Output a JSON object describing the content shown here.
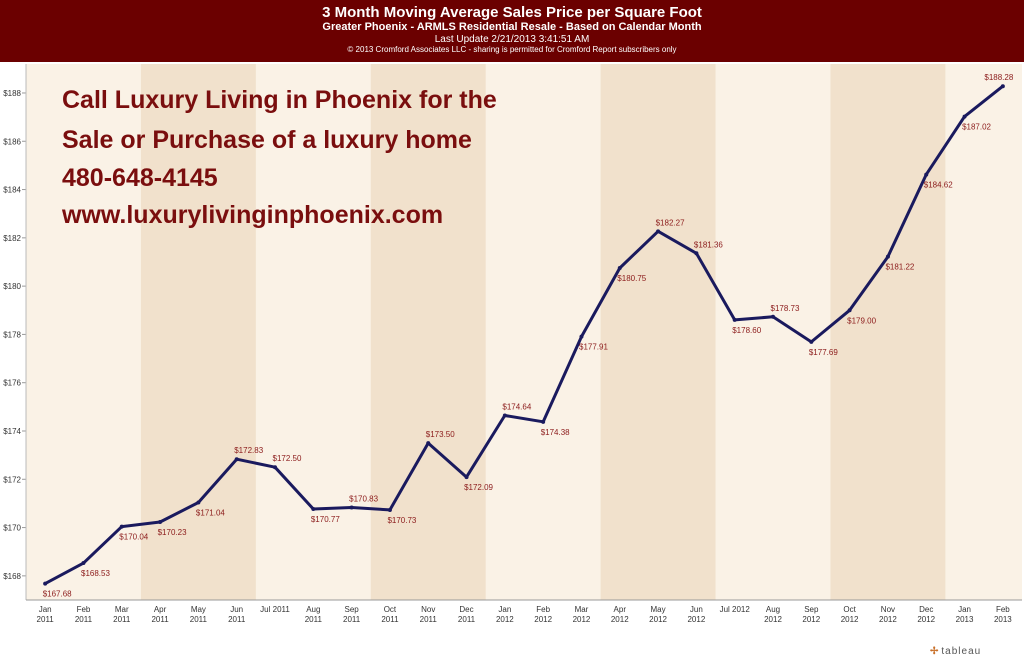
{
  "header": {
    "title": "3 Month Moving Average Sales Price per Square Foot",
    "subtitle": "Greater Phoenix - ARMLS Residential Resale - Based on Calendar Month",
    "update": "Last Update 2/21/2013 3:41:51 AM",
    "copyright": "© 2013 Cromford Associates LLC - sharing is permitted for Cromford Report subscribers only"
  },
  "ad": {
    "lines": [
      "Call Luxury Living in Phoenix for the",
      "Sale or Purchase of a luxury home",
      "480-648-4145",
      "www.luxurylivinginphoenix.com"
    ]
  },
  "logo": {
    "text": "tableau"
  },
  "colors": {
    "line": "#1a1a5e",
    "background": "#faf2e6",
    "band": "#f1e1cc",
    "header": "#6b0000",
    "label": "#8b1a1a"
  },
  "chart_data": {
    "type": "line",
    "title": "3 Month Moving Average Sales Price per Square Foot",
    "xlabel": "",
    "ylabel": "",
    "ylim": [
      167,
      189.2
    ],
    "yticks": [
      168,
      170,
      172,
      174,
      176,
      178,
      180,
      182,
      184,
      186,
      188
    ],
    "ytick_labels": [
      "$168",
      "$170",
      "$172",
      "$174",
      "$176",
      "$178",
      "$180",
      "$182",
      "$184",
      "$186",
      "$188"
    ],
    "categories": [
      [
        "Jan",
        "2011"
      ],
      [
        "Feb",
        "2011"
      ],
      [
        "Mar",
        "2011"
      ],
      [
        "Apr",
        "2011"
      ],
      [
        "May",
        "2011"
      ],
      [
        "Jun",
        "2011"
      ],
      [
        "Jul 2011",
        ""
      ],
      [
        "Aug",
        "2011"
      ],
      [
        "Sep",
        "2011"
      ],
      [
        "Oct",
        "2011"
      ],
      [
        "Nov",
        "2011"
      ],
      [
        "Dec",
        "2011"
      ],
      [
        "Jan",
        "2012"
      ],
      [
        "Feb",
        "2012"
      ],
      [
        "Mar",
        "2012"
      ],
      [
        "Apr",
        "2012"
      ],
      [
        "May",
        "2012"
      ],
      [
        "Jun",
        "2012"
      ],
      [
        "Jul 2012",
        ""
      ],
      [
        "Aug",
        "2012"
      ],
      [
        "Sep",
        "2012"
      ],
      [
        "Oct",
        "2012"
      ],
      [
        "Nov",
        "2012"
      ],
      [
        "Dec",
        "2012"
      ],
      [
        "Jan",
        "2013"
      ],
      [
        "Feb",
        "2013"
      ]
    ],
    "values": [
      167.68,
      168.53,
      170.04,
      170.23,
      171.04,
      172.83,
      172.5,
      170.77,
      170.83,
      170.73,
      173.5,
      172.09,
      174.64,
      174.38,
      177.91,
      180.75,
      182.27,
      181.36,
      178.6,
      178.73,
      177.69,
      179.0,
      181.22,
      184.62,
      187.02,
      188.28
    ],
    "labels": [
      "$167.68",
      "$168.53",
      "$170.04",
      "$170.23",
      "$171.04",
      "$172.83",
      "$172.50",
      "$170.77",
      "$170.83",
      "$170.73",
      "$173.50",
      "$172.09",
      "$174.64",
      "$174.38",
      "$177.91",
      "$180.75",
      "$182.27",
      "$181.36",
      "$178.60",
      "$178.73",
      "$177.69",
      "$179.00",
      "$181.22",
      "$184.62",
      "$187.02",
      "$188.28"
    ],
    "label_positions": [
      "below",
      "below",
      "below",
      "below",
      "below",
      "above",
      "above",
      "below",
      "above",
      "below",
      "above",
      "below",
      "above",
      "below",
      "below",
      "below",
      "above",
      "above",
      "below",
      "above",
      "below",
      "below",
      "below",
      "below",
      "below",
      "above"
    ],
    "shaded_bands": [
      [
        3,
        5
      ],
      [
        9,
        11
      ],
      [
        15,
        17
      ],
      [
        21,
        23
      ]
    ],
    "grid": false,
    "legend": "none"
  }
}
